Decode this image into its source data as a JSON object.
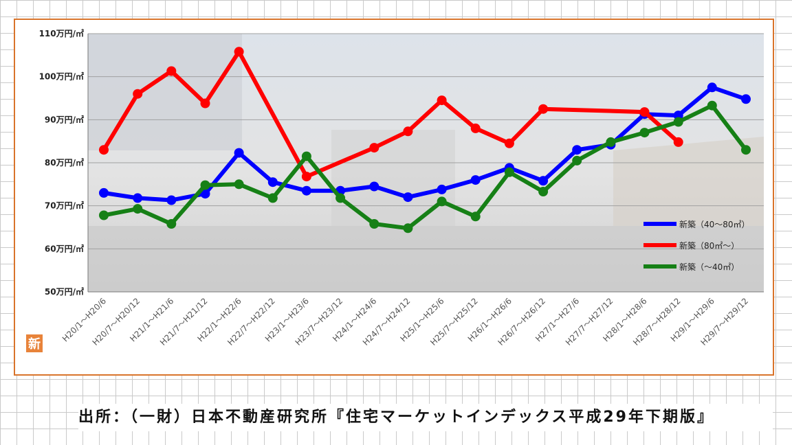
{
  "chart_data": {
    "type": "line",
    "categories": [
      "H20/1～H20/6",
      "H20/7～H20/12",
      "H21/1～H21/6",
      "H21/7～H21/12",
      "H22/1～H22/6",
      "H22/7～H22/12",
      "H23/1～H23/6",
      "H23/7～H23/12",
      "H24/1～H24/6",
      "H24/7～H24/12",
      "H25/1～H25/6",
      "H25/7～H25/12",
      "H26/1～H26/6",
      "H26/7～H26/12",
      "H27/1～H27/6",
      "H27/7～H27/12",
      "H28/1～H28/6",
      "H28/7～H28/12",
      "H29/1～H29/6",
      "H29/7～H29/12"
    ],
    "yticks": [
      "50万円/㎡",
      "60万円/㎡",
      "70万円/㎡",
      "80万円/㎡",
      "90万円/㎡",
      "100万円/㎡",
      "110万円/㎡"
    ],
    "ylim": [
      50,
      110
    ],
    "grid": true,
    "legend_position": "right",
    "series": [
      {
        "name": "新築（40～80㎡）",
        "color": "#0000ff",
        "values": [
          73.0,
          71.8,
          71.3,
          72.8,
          82.3,
          75.5,
          73.5,
          73.5,
          74.5,
          72.0,
          73.8,
          76.0,
          78.8,
          75.8,
          83.0,
          84.2,
          91.3,
          91.0,
          97.5,
          94.8
        ]
      },
      {
        "name": "新築（80㎡～）",
        "color": "#ff0000",
        "values": [
          83.0,
          96.0,
          101.3,
          93.8,
          105.8,
          null,
          76.8,
          null,
          83.5,
          87.3,
          94.5,
          88.0,
          84.5,
          92.5,
          null,
          null,
          91.8,
          84.8,
          null,
          null
        ]
      },
      {
        "name": "新築（～40㎡）",
        "color": "#168016",
        "values": [
          67.8,
          69.3,
          65.8,
          74.8,
          75.0,
          71.8,
          81.5,
          71.8,
          65.8,
          64.8,
          71.0,
          67.5,
          77.8,
          73.3,
          80.5,
          84.8,
          87.0,
          89.5,
          93.3,
          83.0
        ]
      }
    ]
  },
  "badge": {
    "label": "新"
  },
  "source": {
    "text": "出所：（一財）日本不動産研究所『住宅マーケットインデックス平成29年下期版』"
  }
}
